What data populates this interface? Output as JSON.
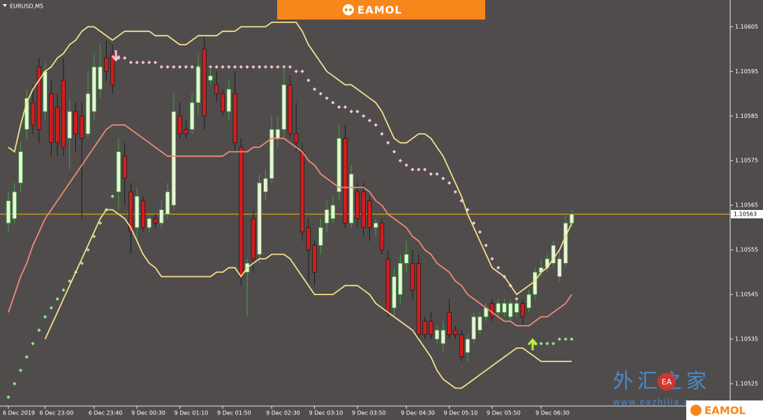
{
  "chart_data": {
    "type": "candlestick",
    "title": "EURUSD,M5",
    "banner": "EAMOL",
    "watermark": "外汇之家",
    "watermark_badge": "EA",
    "watermark_url": "www.eazhijia.com",
    "categories": [
      "6 Dec 2019",
      null,
      null,
      null,
      null,
      null,
      "6 Dec 23:00",
      null,
      null,
      null,
      null,
      null,
      null,
      null,
      "6 Dec 23:40",
      null,
      null,
      null,
      null,
      null,
      null,
      "9 Dec 00:30",
      null,
      null,
      null,
      null,
      null,
      null,
      "9 Dec 01:10",
      null,
      null,
      null,
      null,
      null,
      null,
      "9 Dec 01:50",
      null,
      null,
      null,
      null,
      null,
      null,
      null,
      "9 Dec 02:30",
      null,
      null,
      null,
      null,
      null,
      null,
      "9 Dec 03:10",
      null,
      null,
      null,
      null,
      null,
      null,
      "9 Dec 03:50",
      null,
      null,
      null,
      null,
      null,
      null,
      null,
      "9 Dec 04:30",
      null,
      null,
      null,
      null,
      null,
      null,
      "9 Dec 05:10",
      null,
      null,
      null,
      null,
      null,
      null,
      "9 Dec 05:50",
      null,
      null,
      null,
      null,
      null,
      null,
      null,
      "9 Dec 06:30",
      null,
      null,
      null,
      null,
      null
    ],
    "open": [
      1.10561,
      1.10562,
      1.1057,
      1.10582,
      1.10588,
      1.10596,
      1.10586,
      1.1059,
      1.10587,
      1.10593,
      1.1058,
      1.10586,
      1.10585,
      1.10581,
      1.10586,
      1.10591,
      1.10598,
      1.10599,
      1.10568,
      1.10576,
      1.10568,
      1.1056,
      1.10566,
      1.1056,
      1.10562,
      1.10561,
      1.10563,
      1.10565,
      1.10585,
      1.10582,
      1.10582,
      1.10588,
      1.106,
      1.10593,
      1.10592,
      1.1059,
      1.10586,
      1.1059,
      1.10578,
      1.1055,
      1.10562,
      1.10554,
      1.10568,
      1.10571,
      1.1058,
      1.10582,
      1.10592,
      1.10581,
      1.10577,
      1.1056,
      1.10556,
      1.10556,
      1.10561,
      1.10562,
      1.10568,
      1.1058,
      1.10561,
      1.10568,
      1.10568,
      1.10566,
      1.1056,
      1.10561,
      1.10553,
      1.10542,
      1.10545,
      1.10552,
      1.10552,
      1.10552,
      1.10539,
      1.10539,
      1.10535,
      1.10534,
      1.10541,
      1.10537,
      1.10536,
      1.10532,
      1.10535,
      1.10537,
      1.1054,
      1.10543,
      1.10541,
      1.10541,
      1.1054,
      1.10541,
      1.10543,
      1.10542,
      1.10545,
      1.1055,
      1.10551,
      1.10552,
      1.10549,
      1.10552,
      1.10561
    ],
    "high": [
      1.10568,
      1.1057,
      1.10579,
      1.10591,
      1.10592,
      1.10598,
      1.10597,
      1.10593,
      1.1059,
      1.10598,
      1.10589,
      1.10588,
      1.10588,
      1.10595,
      1.10599,
      1.10601,
      1.10602,
      1.10601,
      1.1058,
      1.10579,
      1.1057,
      1.10569,
      1.10567,
      1.10563,
      1.10563,
      1.10566,
      1.1057,
      1.1059,
      1.10588,
      1.10584,
      1.1059,
      1.10599,
      1.10603,
      1.10596,
      1.10595,
      1.10591,
      1.10593,
      1.10595,
      1.1058,
      1.10553,
      1.10564,
      1.10572,
      1.10573,
      1.10585,
      1.10585,
      1.10596,
      1.10594,
      1.10588,
      1.10579,
      1.10562,
      1.10557,
      1.10562,
      1.10566,
      1.10567,
      1.10583,
      1.10583,
      1.10574,
      1.1057,
      1.1057,
      1.10567,
      1.10562,
      1.10562,
      1.10555,
      1.10551,
      1.10554,
      1.10557,
      1.10555,
      1.10554,
      1.1054,
      1.10541,
      1.10538,
      1.10539,
      1.10544,
      1.10538,
      1.10537,
      1.10536,
      1.10541,
      1.10541,
      1.10543,
      1.10544,
      1.10544,
      1.10544,
      1.10544,
      1.10544,
      1.10544,
      1.10546,
      1.10551,
      1.10553,
      1.10554,
      1.10557,
      1.10555,
      1.10563,
      1.10564
    ],
    "low": [
      1.10559,
      1.10561,
      1.10568,
      1.1058,
      1.10581,
      1.10579,
      1.10584,
      1.10576,
      1.10576,
      1.10576,
      1.10573,
      1.10577,
      1.10562,
      1.1058,
      1.10584,
      1.10589,
      1.10593,
      1.1059,
      1.10564,
      1.10565,
      1.10554,
      1.10557,
      1.10559,
      1.10559,
      1.1056,
      1.1056,
      1.10562,
      1.10564,
      1.1058,
      1.1058,
      1.10581,
      1.10585,
      1.10582,
      1.10592,
      1.10588,
      1.10585,
      1.10584,
      1.10577,
      1.10547,
      1.1054,
      1.1055,
      1.10552,
      1.10566,
      1.1057,
      1.10578,
      1.1058,
      1.1058,
      1.10577,
      1.10557,
      1.10548,
      1.10547,
      1.10554,
      1.10559,
      1.10561,
      1.10566,
      1.1056,
      1.1056,
      1.1056,
      1.10558,
      1.10557,
      1.10558,
      1.10554,
      1.1054,
      1.1054,
      1.10543,
      1.1055,
      1.10544,
      1.10535,
      1.10535,
      1.10535,
      1.10534,
      1.10532,
      1.10535,
      1.10535,
      1.1053,
      1.1053,
      1.10534,
      1.10536,
      1.10539,
      1.10539,
      1.1054,
      1.1054,
      1.10539,
      1.1054,
      1.10538,
      1.10541,
      1.10544,
      1.10549,
      1.1055,
      1.10551,
      1.10548,
      1.10551,
      1.1056
    ],
    "close": [
      1.10566,
      1.10568,
      1.10577,
      1.10589,
      1.10583,
      1.10582,
      1.10595,
      1.10579,
      1.10579,
      1.10578,
      1.10586,
      1.10581,
      1.1058,
      1.1059,
      1.10596,
      1.10596,
      1.10595,
      1.10592,
      1.10577,
      1.10571,
      1.10559,
      1.10567,
      1.1056,
      1.10562,
      1.10561,
      1.10564,
      1.10568,
      1.10586,
      1.10581,
      1.10581,
      1.10588,
      1.10596,
      1.10585,
      1.10594,
      1.1059,
      1.10586,
      1.10591,
      1.10579,
      1.10549,
      1.10552,
      1.10553,
      1.1057,
      1.10571,
      1.10582,
      1.10582,
      1.10592,
      1.10581,
      1.10579,
      1.10559,
      1.10555,
      1.1055,
      1.1056,
      1.10564,
      1.10565,
      1.1058,
      1.10561,
      1.10572,
      1.10562,
      1.1056,
      1.1056,
      1.10561,
      1.10555,
      1.10541,
      1.10549,
      1.10552,
      1.10554,
      1.10546,
      1.10536,
      1.10536,
      1.10536,
      1.10537,
      1.10537,
      1.10536,
      1.10536,
      1.10531,
      1.10535,
      1.1054,
      1.1054,
      1.10542,
      1.1054,
      1.10543,
      1.10543,
      1.10543,
      1.10543,
      1.1054,
      1.10545,
      1.1055,
      1.10551,
      1.10553,
      1.10556,
      1.10553,
      1.10561,
      1.10563
    ],
    "up_color": "#e6f6d4",
    "up_wick_color": "#48a048",
    "down_color": "#d41c1c",
    "down_wick_color": "#1c1c1c",
    "series": [
      {
        "style": "line",
        "color": "#f2e08c",
        "values": [
          1.10578,
          1.10577,
          1.10583,
          1.10588,
          1.10591,
          1.10593,
          1.10595,
          1.10596,
          1.10598,
          1.10599,
          1.10601,
          1.10602,
          1.10604,
          1.10605,
          1.10605,
          1.10604,
          1.10603,
          1.10602,
          1.10603,
          1.10604,
          1.10604,
          1.10604,
          1.10604,
          1.10604,
          1.10603,
          1.10603,
          1.10603,
          1.10602,
          1.10601,
          1.10601,
          1.10602,
          1.10603,
          1.10603,
          1.10603,
          1.10603,
          1.10604,
          1.10604,
          1.10604,
          1.10605,
          1.10605,
          1.10605,
          1.10605,
          1.10605,
          1.10606,
          1.10606,
          1.10606,
          1.10606,
          1.10606,
          1.10604,
          1.10601,
          1.10599,
          1.10597,
          1.10595,
          1.10594,
          1.10593,
          1.10592,
          1.10592,
          1.10591,
          1.1059,
          1.10589,
          1.10588,
          1.10586,
          1.10583,
          1.1058,
          1.10579,
          1.10579,
          1.1058,
          1.10581,
          1.10581,
          1.1058,
          1.10578,
          1.10576,
          1.10573,
          1.1057,
          1.10567,
          1.10563,
          1.1056,
          1.10557,
          1.10554,
          1.10551,
          1.1055,
          1.10549,
          1.10547,
          1.10545,
          1.10546,
          1.10547,
          1.10548,
          1.1055,
          1.10551,
          1.10553,
          1.10555,
          1.10558,
          1.10561
        ]
      },
      {
        "style": "line",
        "color": "#f08a78",
        "values": [
          1.10541,
          1.10545,
          1.10549,
          1.10552,
          1.10556,
          1.10559,
          1.10562,
          1.10564,
          1.10566,
          1.10568,
          1.1057,
          1.10572,
          1.10574,
          1.10576,
          1.10578,
          1.1058,
          1.10582,
          1.10583,
          1.10583,
          1.10583,
          1.10582,
          1.10581,
          1.1058,
          1.10579,
          1.10578,
          1.10577,
          1.10576,
          1.10576,
          1.10576,
          1.10576,
          1.10576,
          1.10576,
          1.10576,
          1.10576,
          1.10576,
          1.10576,
          1.10577,
          1.10577,
          1.10577,
          1.10577,
          1.10578,
          1.10578,
          1.10579,
          1.1058,
          1.1058,
          1.1058,
          1.10579,
          1.10578,
          1.10577,
          1.10575,
          1.10574,
          1.10572,
          1.10571,
          1.1057,
          1.10569,
          1.10569,
          1.10569,
          1.10569,
          1.10569,
          1.10568,
          1.10566,
          1.10565,
          1.10563,
          1.10562,
          1.10561,
          1.1056,
          1.10558,
          1.10557,
          1.10555,
          1.10554,
          1.10552,
          1.10551,
          1.1055,
          1.10548,
          1.10547,
          1.10545,
          1.10544,
          1.10543,
          1.10542,
          1.10541,
          1.1054,
          1.10539,
          1.10539,
          1.10538,
          1.10538,
          1.10538,
          1.10539,
          1.1054,
          1.1054,
          1.10541,
          1.10542,
          1.10543,
          1.10545
        ]
      },
      {
        "style": "line",
        "color": "#f2e08c",
        "values": [
          null,
          null,
          null,
          null,
          null,
          null,
          1.10535,
          1.10538,
          1.10541,
          1.10544,
          1.10547,
          1.1055,
          1.10553,
          1.10556,
          1.10559,
          1.10562,
          1.10564,
          1.10564,
          1.10563,
          1.10562,
          1.1056,
          1.10557,
          1.10554,
          1.10552,
          1.10551,
          1.10549,
          1.10549,
          1.10549,
          1.10549,
          1.10549,
          1.10549,
          1.10549,
          1.10549,
          1.10549,
          1.1055,
          1.1055,
          1.10551,
          1.10551,
          1.10549,
          1.10551,
          1.10552,
          1.10553,
          1.10553,
          1.10554,
          1.10554,
          1.10554,
          1.10553,
          1.10551,
          1.10549,
          1.10547,
          1.10545,
          1.10545,
          1.10545,
          1.10545,
          1.10546,
          1.10547,
          1.10547,
          1.10547,
          1.10546,
          1.10545,
          1.10543,
          1.10542,
          1.10541,
          1.1054,
          1.10539,
          1.10538,
          1.10537,
          1.10535,
          1.10533,
          1.10531,
          1.10528,
          1.10526,
          1.10525,
          1.10524,
          1.10524,
          1.10525,
          1.10526,
          1.10527,
          1.10528,
          1.10529,
          1.1053,
          1.10531,
          1.10532,
          1.10533,
          1.10533,
          1.10532,
          1.10531,
          1.1053,
          1.1053,
          1.1053,
          1.1053,
          1.1053,
          1.1053
        ]
      },
      {
        "style": "dots",
        "color": "#f6c4d6",
        "values": [
          null,
          null,
          null,
          null,
          null,
          null,
          null,
          null,
          null,
          null,
          null,
          null,
          null,
          null,
          null,
          null,
          null,
          null,
          1.10598,
          1.10598,
          1.10597,
          1.10597,
          1.10597,
          1.10597,
          1.10597,
          1.10596,
          1.10596,
          1.10596,
          1.10596,
          1.10596,
          1.10596,
          1.10596,
          1.10596,
          1.10596,
          1.10596,
          1.10596,
          1.10596,
          1.10596,
          1.10596,
          1.10596,
          1.10596,
          1.10596,
          1.10596,
          1.10596,
          1.10596,
          1.10596,
          1.10596,
          1.10595,
          1.10595,
          1.10593,
          1.10591,
          1.1059,
          1.10589,
          1.10588,
          1.10587,
          1.10587,
          1.10586,
          1.10586,
          1.10585,
          1.10584,
          1.10583,
          1.10581,
          1.10579,
          1.10577,
          1.10575,
          1.10574,
          1.10573,
          1.10573,
          1.10573,
          1.10572,
          1.10572,
          1.10571,
          1.1057,
          1.10568,
          1.10566,
          1.10564,
          1.10561,
          1.10559,
          1.10556,
          1.10553,
          1.10551,
          1.10549,
          1.10547,
          1.10544,
          null,
          null,
          null,
          null,
          null,
          null,
          null,
          null,
          null
        ]
      },
      {
        "style": "dots",
        "color": "#8ee88a",
        "values": [
          1.10522,
          1.10525,
          1.10528,
          1.10531,
          1.10534,
          1.10537,
          1.1054,
          1.10542,
          1.10544,
          1.10546,
          1.10548,
          1.1055,
          1.10552,
          1.10555,
          1.10558,
          1.10561,
          1.10564,
          1.10567,
          null,
          null,
          null,
          null,
          null,
          null,
          null,
          null,
          null,
          null,
          null,
          null,
          null,
          null,
          null,
          null,
          null,
          null,
          null,
          null,
          null,
          null,
          null,
          null,
          null,
          null,
          null,
          null,
          null,
          null,
          null,
          null,
          null,
          null,
          null,
          null,
          null,
          null,
          null,
          null,
          null,
          null,
          null,
          null,
          null,
          null,
          null,
          null,
          null,
          null,
          null,
          null,
          null,
          null,
          null,
          null,
          null,
          null,
          null,
          null,
          null,
          null,
          null,
          null,
          null,
          null,
          null,
          null,
          1.10534,
          1.10534,
          1.10534,
          1.10534,
          1.10535,
          1.10535,
          1.10535
        ]
      }
    ],
    "current_price": 1.10563,
    "price_line_color": "#d6a41a",
    "ylim": [
      1.1052,
      1.10611
    ],
    "yticks": [
      1.10525,
      1.10535,
      1.10545,
      1.10555,
      1.10565,
      1.10575,
      1.10585,
      1.10595,
      1.10605
    ],
    "grid": false
  }
}
